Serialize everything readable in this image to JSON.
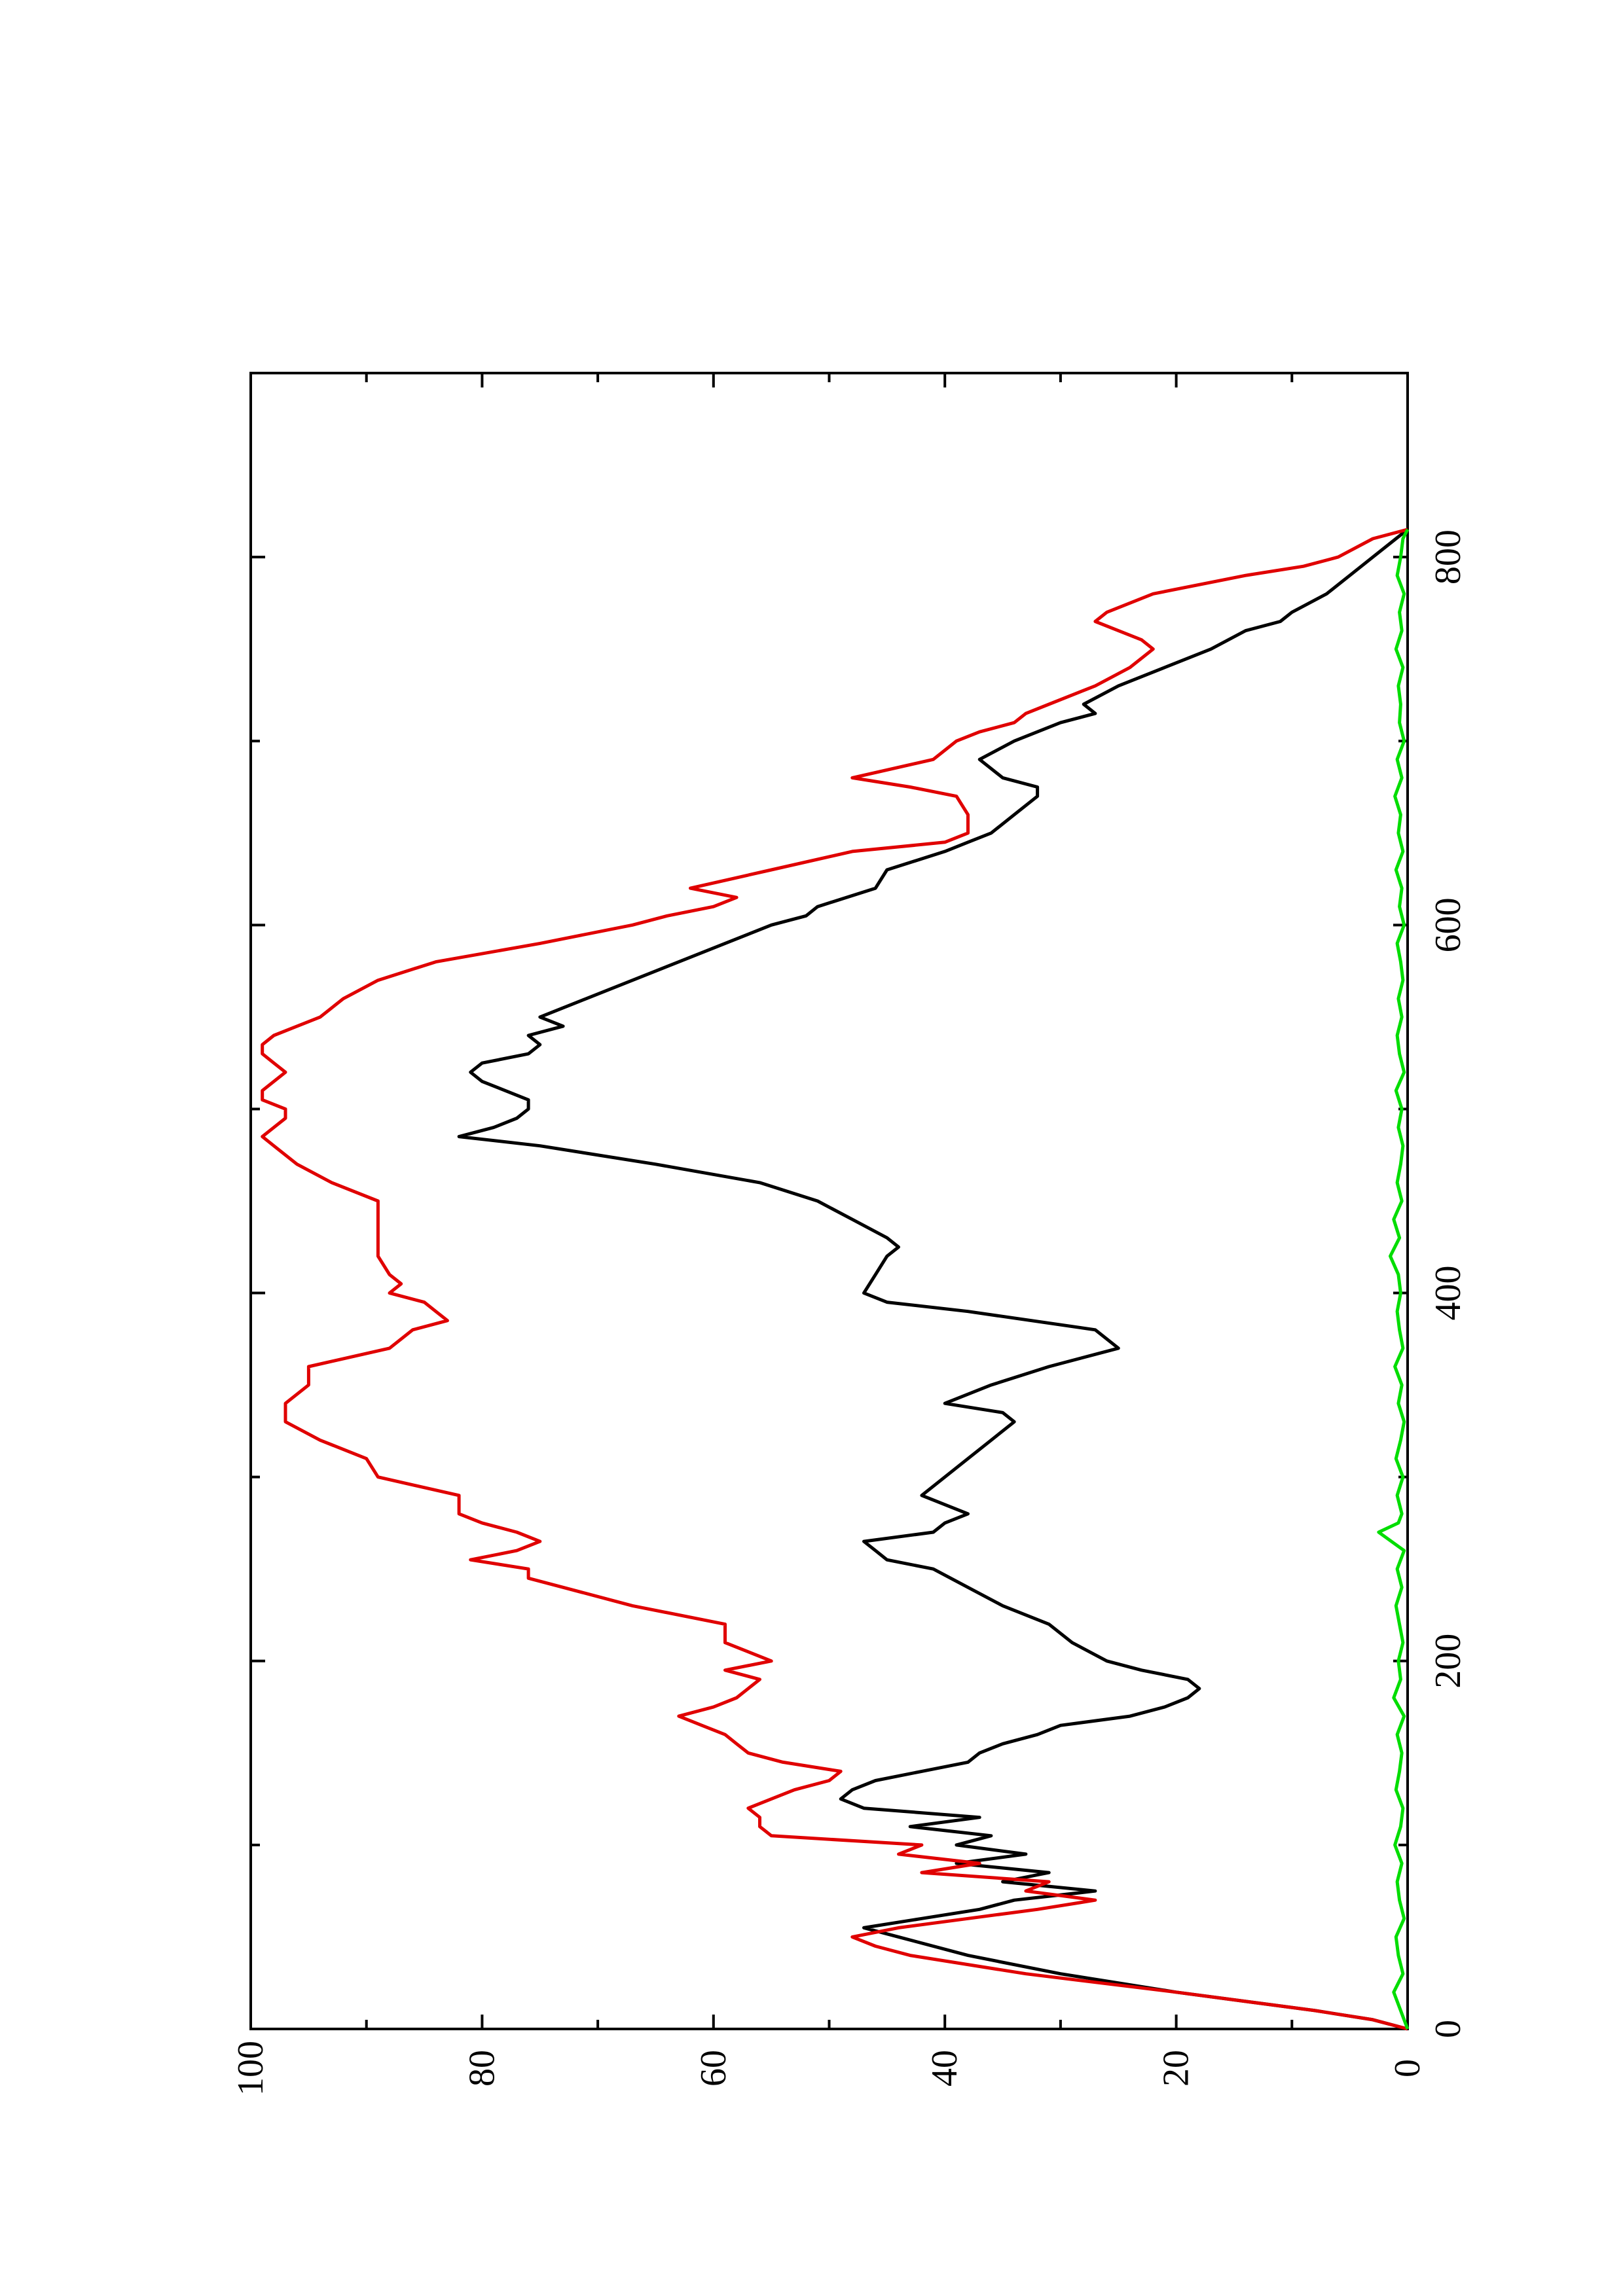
{
  "chart_data": {
    "type": "line",
    "orientation": "rotated-90-counterclockwise",
    "title": "",
    "xlabel": "",
    "ylabel": "",
    "xlim": [
      0,
      900
    ],
    "ylim": [
      0,
      100
    ],
    "grid": false,
    "legend": "none",
    "x_ticks": [
      0,
      200,
      400,
      600,
      800
    ],
    "x_tick_labels": [
      "0",
      "200",
      "400",
      "600",
      "800"
    ],
    "x_minor_ticks": [
      100,
      300,
      500,
      700
    ],
    "y_ticks": [
      0,
      20,
      40,
      60,
      80,
      100
    ],
    "y_tick_labels": [
      "0",
      "20",
      "40",
      "60",
      "80",
      "100"
    ],
    "y_minor_ticks": [
      10,
      30,
      50,
      70,
      90
    ],
    "series": [
      {
        "color": "#000000",
        "x": [
          0,
          5,
          10,
          20,
          30,
          40,
          50,
          55,
          60,
          65,
          70,
          75,
          80,
          85,
          90,
          95,
          100,
          105,
          110,
          115,
          120,
          125,
          130,
          135,
          140,
          145,
          150,
          155,
          160,
          165,
          170,
          175,
          180,
          185,
          190,
          195,
          200,
          210,
          220,
          230,
          240,
          250,
          255,
          260,
          265,
          270,
          275,
          280,
          290,
          300,
          310,
          320,
          330,
          335,
          340,
          350,
          360,
          370,
          380,
          390,
          395,
          400,
          410,
          420,
          425,
          430,
          440,
          450,
          460,
          470,
          480,
          485,
          490,
          495,
          500,
          505,
          510,
          515,
          520,
          525,
          530,
          535,
          540,
          545,
          550,
          560,
          570,
          580,
          590,
          600,
          605,
          610,
          620,
          630,
          640,
          645,
          650,
          660,
          670,
          675,
          680,
          690,
          700,
          710,
          715,
          720,
          730,
          740,
          750,
          760,
          765,
          770,
          780,
          790,
          800,
          810,
          815
        ],
        "y": [
          0,
          3,
          8,
          20,
          30,
          38,
          44,
          47,
          42,
          37,
          34,
          27,
          35,
          31,
          39,
          33,
          39,
          36,
          43,
          37,
          47,
          49,
          48,
          46,
          42,
          38,
          37,
          35,
          32,
          30,
          24,
          21,
          19,
          18,
          19,
          23,
          26,
          29,
          31,
          35,
          38,
          41,
          45,
          46,
          47,
          41,
          40,
          38,
          42,
          40,
          38,
          36,
          34,
          35,
          40,
          36,
          31,
          25,
          27,
          38,
          45,
          47,
          46,
          45,
          44,
          45,
          48,
          51,
          56,
          65,
          75,
          82,
          79,
          77,
          76,
          76,
          78,
          80,
          81,
          80,
          76,
          75,
          76,
          73,
          75,
          71,
          67,
          63,
          59,
          55,
          52,
          51,
          46,
          45,
          40,
          38,
          36,
          34,
          32,
          32,
          35,
          37,
          34,
          30,
          27,
          28,
          25,
          21,
          17,
          14,
          11,
          10,
          7,
          5,
          3,
          1,
          0
        ]
      },
      {
        "color": "#e00000",
        "x": [
          0,
          5,
          10,
          20,
          30,
          40,
          45,
          50,
          55,
          60,
          65,
          70,
          75,
          80,
          85,
          90,
          95,
          100,
          105,
          110,
          115,
          120,
          125,
          130,
          135,
          140,
          145,
          150,
          155,
          160,
          165,
          170,
          175,
          180,
          185,
          190,
          195,
          200,
          210,
          220,
          230,
          240,
          245,
          250,
          255,
          260,
          265,
          270,
          275,
          280,
          290,
          300,
          310,
          320,
          330,
          340,
          350,
          360,
          370,
          380,
          385,
          390,
          395,
          400,
          405,
          410,
          420,
          430,
          440,
          450,
          460,
          470,
          480,
          485,
          490,
          495,
          500,
          505,
          510,
          515,
          520,
          525,
          530,
          535,
          540,
          545,
          550,
          560,
          570,
          580,
          590,
          600,
          605,
          610,
          615,
          620,
          630,
          640,
          645,
          650,
          660,
          670,
          675,
          680,
          690,
          700,
          705,
          710,
          715,
          720,
          730,
          740,
          750,
          755,
          760,
          765,
          770,
          780,
          790,
          795,
          800,
          810,
          815
        ],
        "y": [
          0,
          3,
          8,
          20,
          33,
          43,
          46,
          48,
          44,
          38,
          32,
          27,
          33,
          31,
          42,
          37,
          44,
          42,
          55,
          56,
          56,
          57,
          55,
          53,
          50,
          49,
          54,
          57,
          58,
          59,
          61,
          63,
          60,
          58,
          57,
          56,
          59,
          55,
          59,
          59,
          67,
          73,
          76,
          76,
          81,
          77,
          75,
          77,
          80,
          82,
          82,
          89,
          90,
          94,
          97,
          97,
          95,
          95,
          88,
          86,
          83,
          84,
          85,
          88,
          87,
          88,
          89,
          89,
          89,
          89,
          93,
          96,
          98,
          99,
          98,
          97,
          97,
          99,
          99,
          98,
          97,
          98,
          99,
          99,
          98,
          96,
          94,
          92,
          89,
          84,
          75,
          67,
          64,
          60,
          58,
          62,
          55,
          48,
          40,
          38,
          38,
          39,
          43,
          48,
          41,
          39,
          37,
          34,
          33,
          31,
          27,
          24,
          22,
          23,
          25,
          27,
          26,
          22,
          14,
          9,
          6,
          3,
          0
        ]
      },
      {
        "color": "#00dd00",
        "x": [
          0,
          10,
          20,
          30,
          40,
          50,
          60,
          70,
          80,
          90,
          100,
          110,
          120,
          130,
          140,
          150,
          160,
          170,
          180,
          190,
          200,
          210,
          220,
          230,
          240,
          250,
          260,
          270,
          275,
          280,
          290,
          300,
          310,
          320,
          330,
          340,
          350,
          360,
          370,
          380,
          390,
          400,
          410,
          420,
          430,
          440,
          450,
          460,
          470,
          480,
          490,
          500,
          510,
          520,
          530,
          540,
          550,
          560,
          570,
          580,
          590,
          600,
          610,
          620,
          630,
          640,
          650,
          660,
          670,
          680,
          690,
          700,
          710,
          720,
          730,
          740,
          750,
          760,
          770,
          780,
          790,
          800,
          810,
          815
        ],
        "y": [
          0,
          0.6,
          1.2,
          0.4,
          0.8,
          1.0,
          0.3,
          0.7,
          0.9,
          0.5,
          1.1,
          0.6,
          0.4,
          1.0,
          0.7,
          0.5,
          0.9,
          0.3,
          1.2,
          0.6,
          0.8,
          0.4,
          0.7,
          1.0,
          0.5,
          0.9,
          0.3,
          2.5,
          0.8,
          0.5,
          0.9,
          0.4,
          1.0,
          0.6,
          0.3,
          0.8,
          0.5,
          1.1,
          0.4,
          0.7,
          0.9,
          0.6,
          0.8,
          1.5,
          0.7,
          1.2,
          0.5,
          0.9,
          0.6,
          0.4,
          0.8,
          0.5,
          1.0,
          0.3,
          0.7,
          0.9,
          0.5,
          0.8,
          0.4,
          0.6,
          0.9,
          0.3,
          0.7,
          0.5,
          1.0,
          0.4,
          0.8,
          0.6,
          1.1,
          0.5,
          0.9,
          0.3,
          0.7,
          0.6,
          0.8,
          0.4,
          1.0,
          0.5,
          0.7,
          0.3,
          0.9,
          0.6,
          0.4,
          0
        ]
      }
    ]
  }
}
